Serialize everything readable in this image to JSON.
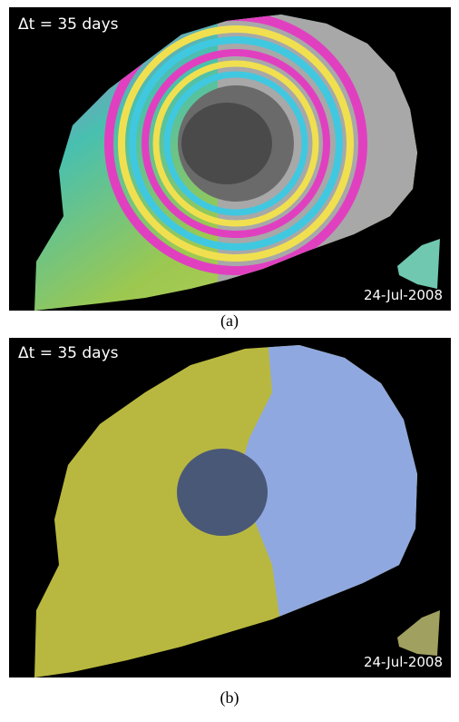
{
  "panels": [
    {
      "annotation": "Δt = 35 days",
      "date": "24-Jul-2008",
      "caption": "(a)"
    },
    {
      "annotation": "Δt = 35 days",
      "date": "24-Jul-2008",
      "caption": "(b)"
    }
  ]
}
